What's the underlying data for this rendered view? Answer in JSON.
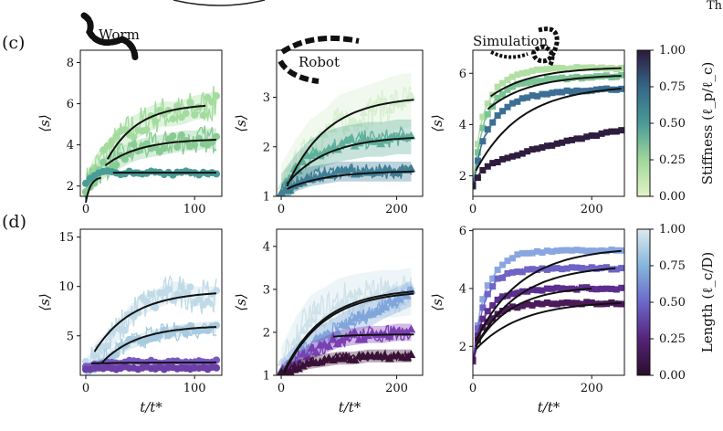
{
  "page_header": {
    "corner_text": "Th"
  },
  "colorbars": {
    "stiffness": {
      "label": "Stiffness (ℓ_p/ℓ_c)",
      "ticks": [
        "1.00",
        "0.75",
        "0.50",
        "0.25",
        "0.00"
      ],
      "colors": [
        "#2c1a3b",
        "#356689",
        "#4a9a97",
        "#9fd79c",
        "#e3f3c6"
      ]
    },
    "length": {
      "label": "Length (ℓ_c/D)",
      "ticks": [
        "1.00",
        "0.75",
        "0.50",
        "0.25",
        "0.00"
      ],
      "colors": [
        "#dde9ee",
        "#85b6dc",
        "#6c67cb",
        "#56237a",
        "#2b0d2b"
      ]
    }
  },
  "chart_data": [
    {
      "id": "c-worm",
      "type": "line",
      "panel_label": "(c)",
      "annotation": "Worm",
      "xlabel": "",
      "ylabel": "⟨s⟩",
      "xlim": [
        -5,
        125
      ],
      "ylim": [
        1.5,
        8.6
      ],
      "xticks": [
        0,
        100
      ],
      "xtick_labels": [
        "0",
        "100"
      ],
      "yticks": [
        2,
        4,
        6,
        8
      ],
      "ytick_labels": [
        "2",
        "4",
        "6",
        "8"
      ],
      "series": [
        {
          "name": "stiffness 0.10",
          "color": "#a4dc9f",
          "noise": 0.9,
          "band": 0.6,
          "marker": "circle",
          "x": [
            0,
            10,
            20,
            30,
            40,
            50,
            60,
            70,
            80,
            90,
            100,
            110,
            120
          ],
          "y": [
            2.0,
            3.0,
            3.6,
            4.2,
            4.7,
            5.0,
            5.3,
            5.5,
            5.5,
            5.6,
            5.8,
            5.9,
            6.0
          ],
          "fit": {
            "x0": 20,
            "x1": 110,
            "y_start": 3.3,
            "y_end": 5.9
          }
        },
        {
          "name": "stiffness 0.20",
          "color": "#88cc94",
          "noise": 0.7,
          "band": 0.5,
          "marker": "circle",
          "x": [
            0,
            10,
            20,
            30,
            40,
            50,
            60,
            70,
            80,
            90,
            100,
            110,
            120
          ],
          "y": [
            2.0,
            2.6,
            3.0,
            3.3,
            3.6,
            3.8,
            3.9,
            4.0,
            4.1,
            4.2,
            4.2,
            4.3,
            4.3
          ],
          "fit": {
            "x0": 18,
            "x1": 120,
            "y_start": 3.0,
            "y_end": 4.25
          }
        },
        {
          "name": "stiffness 0.55",
          "color": "#4a9c97",
          "noise": 0.15,
          "band": 0.1,
          "marker": "circle",
          "x": [
            0,
            10,
            20,
            30,
            40,
            50,
            60,
            70,
            80,
            90,
            100,
            110,
            120
          ],
          "y": [
            2.1,
            2.6,
            2.7,
            2.6,
            2.7,
            2.6,
            2.7,
            2.6,
            2.6,
            2.7,
            2.6,
            2.6,
            2.6
          ],
          "fit": {
            "x0": 25,
            "x1": 120,
            "y_start": 2.65,
            "y_end": 2.65
          }
        },
        {
          "name": "initial fit",
          "color": "#111111",
          "noise": 0,
          "band": 0,
          "marker": "none",
          "x": [
            0,
            10,
            20
          ],
          "y": [
            1.2,
            2.0,
            2.6
          ],
          "fit": {
            "x0": 0,
            "x1": 14,
            "y_start": 1.2,
            "y_end": 2.4
          }
        }
      ]
    },
    {
      "id": "c-robot",
      "type": "line",
      "panel_label": "",
      "annotation": "Robot",
      "xlabel": "",
      "ylabel": "⟨s⟩",
      "xlim": [
        -8,
        245
      ],
      "ylim": [
        1.0,
        3.95
      ],
      "xticks": [
        0,
        200
      ],
      "xtick_labels": [
        "0",
        "200"
      ],
      "yticks": [
        1,
        2,
        3
      ],
      "ytick_labels": [
        "1",
        "2",
        "3"
      ],
      "series": [
        {
          "name": "stiffness 0.05",
          "color": "#d8efd2",
          "noise": 0.35,
          "band": 0.55,
          "marker": "triangle",
          "x": [
            0,
            25,
            50,
            75,
            100,
            125,
            150,
            175,
            200,
            225
          ],
          "y": [
            1.1,
            1.6,
            2.0,
            2.2,
            2.5,
            2.6,
            2.7,
            2.8,
            2.9,
            2.95
          ],
          "fit": {
            "x0": 10,
            "x1": 230,
            "y_start": 1.2,
            "y_end": 2.95
          }
        },
        {
          "name": "stiffness 0.35",
          "color": "#5fb09b",
          "noise": 0.2,
          "band": 0.35,
          "marker": "triangle",
          "x": [
            0,
            25,
            50,
            75,
            100,
            125,
            150,
            175,
            200,
            225
          ],
          "y": [
            1.1,
            1.5,
            1.8,
            1.95,
            2.05,
            2.1,
            2.15,
            2.15,
            2.2,
            2.2
          ],
          "fit": {
            "x0": 10,
            "x1": 230,
            "y_start": 1.25,
            "y_end": 2.18
          }
        },
        {
          "name": "stiffness 0.70",
          "color": "#3f7f96",
          "noise": 0.15,
          "band": 0.2,
          "marker": "triangle",
          "x": [
            0,
            25,
            50,
            75,
            100,
            125,
            150,
            175,
            200,
            225
          ],
          "y": [
            1.05,
            1.3,
            1.4,
            1.45,
            1.5,
            1.5,
            1.5,
            1.5,
            1.5,
            1.5
          ],
          "fit": {
            "x0": 10,
            "x1": 230,
            "y_start": 1.15,
            "y_end": 1.5
          }
        }
      ]
    },
    {
      "id": "c-sim",
      "type": "line",
      "panel_label": "",
      "annotation": "Simulation",
      "xlabel": "",
      "ylabel": "⟨s⟩",
      "xlim": [
        0,
        255
      ],
      "ylim": [
        1.2,
        6.9
      ],
      "xticks": [
        0,
        200
      ],
      "xtick_labels": [
        "0",
        "200"
      ],
      "yticks": [
        2,
        4,
        6
      ],
      "ytick_labels": [
        "2",
        "4",
        "6"
      ],
      "series": [
        {
          "name": "stiffness 0.05",
          "color": "#b2e0a4",
          "noise": 0.08,
          "band": 0.1,
          "marker": "square",
          "x": [
            0,
            10,
            20,
            40,
            60,
            80,
            100,
            150,
            200,
            250
          ],
          "y": [
            1.6,
            3.6,
            4.6,
            5.4,
            5.8,
            6.0,
            6.1,
            6.2,
            6.2,
            6.2
          ],
          "fit": {
            "x0": 30,
            "x1": 250,
            "y_start": 5.1,
            "y_end": 6.2
          }
        },
        {
          "name": "stiffness 0.30",
          "color": "#7ac495",
          "noise": 0.08,
          "band": 0.1,
          "marker": "square",
          "x": [
            0,
            10,
            20,
            40,
            60,
            80,
            100,
            150,
            200,
            250
          ],
          "y": [
            1.6,
            3.2,
            4.2,
            5.0,
            5.4,
            5.6,
            5.7,
            5.8,
            5.85,
            5.9
          ],
          "fit": {
            "x0": 25,
            "x1": 250,
            "y_start": 4.6,
            "y_end": 5.9
          }
        },
        {
          "name": "stiffness 0.70",
          "color": "#3d6f95",
          "noise": 0.08,
          "band": 0.1,
          "marker": "square",
          "x": [
            0,
            10,
            20,
            40,
            60,
            80,
            100,
            150,
            200,
            250
          ],
          "y": [
            1.6,
            2.8,
            3.6,
            4.3,
            4.7,
            5.0,
            5.1,
            5.3,
            5.35,
            5.4
          ],
          "fit": {
            "x0": 5,
            "x1": 250,
            "y_start": 2.2,
            "y_end": 5.4
          }
        },
        {
          "name": "stiffness 0.95",
          "color": "#2e1d3e",
          "noise": 0.06,
          "band": 0.06,
          "marker": "square",
          "x": [
            0,
            10,
            20,
            40,
            60,
            80,
            100,
            150,
            200,
            250
          ],
          "y": [
            1.6,
            2.0,
            2.3,
            2.55,
            2.7,
            2.85,
            3.0,
            3.3,
            3.55,
            3.8
          ],
          "fit": null
        }
      ]
    },
    {
      "id": "d-worm",
      "type": "line",
      "panel_label": "(d)",
      "annotation": "",
      "xlabel": "t/t*",
      "ylabel": "⟨s⟩",
      "xlim": [
        -5,
        125
      ],
      "ylim": [
        1.0,
        15.8
      ],
      "xticks": [
        0,
        100
      ],
      "xtick_labels": [
        "0",
        "100"
      ],
      "yticks": [
        5,
        10,
        15
      ],
      "ytick_labels": [
        "5",
        "10",
        "15"
      ],
      "series": [
        {
          "name": "length 0.95",
          "color": "#c0dbe7",
          "noise": 1.8,
          "band": 1.0,
          "marker": "circle",
          "x": [
            0,
            10,
            20,
            30,
            40,
            50,
            60,
            70,
            80,
            90,
            100,
            110,
            120
          ],
          "y": [
            1.5,
            3.5,
            4.5,
            5.5,
            7.0,
            8.0,
            8.5,
            9.0,
            9.5,
            9.5,
            9.0,
            9.0,
            9.0
          ],
          "fit": {
            "x0": 8,
            "x1": 120,
            "y_start": 3.4,
            "y_end": 9.3
          }
        },
        {
          "name": "length 0.85",
          "color": "#a7cbe0",
          "noise": 1.0,
          "band": 0.6,
          "marker": "circle",
          "x": [
            0,
            10,
            20,
            30,
            40,
            50,
            60,
            70,
            80,
            90,
            100,
            110,
            120
          ],
          "y": [
            1.5,
            2.0,
            2.8,
            3.6,
            4.2,
            4.6,
            5.0,
            5.2,
            5.4,
            5.6,
            5.7,
            5.8,
            5.9
          ],
          "fit": {
            "x0": 15,
            "x1": 120,
            "y_start": 2.3,
            "y_end": 5.9
          }
        },
        {
          "name": "length 0.55",
          "color": "#7a58c2",
          "noise": 0.3,
          "band": 0.25,
          "marker": "circle",
          "x": [
            0,
            10,
            20,
            30,
            40,
            50,
            60,
            70,
            80,
            90,
            100,
            110,
            120
          ],
          "y": [
            1.9,
            2.1,
            2.3,
            2.3,
            2.4,
            2.3,
            2.4,
            2.3,
            2.4,
            2.3,
            2.4,
            2.3,
            2.4
          ],
          "fit": {
            "x0": 5,
            "x1": 120,
            "y_start": 2.2,
            "y_end": 2.3
          }
        },
        {
          "name": "length 0.45",
          "color": "#6b3fa6",
          "noise": 0.25,
          "band": 0.2,
          "marker": "circle",
          "x": [
            0,
            10,
            20,
            30,
            40,
            50,
            60,
            70,
            80,
            90,
            100,
            110,
            120
          ],
          "y": [
            1.6,
            1.7,
            1.7,
            1.7,
            1.8,
            1.7,
            1.8,
            1.7,
            1.8,
            1.7,
            1.7,
            1.7,
            1.7
          ],
          "fit": null
        }
      ]
    },
    {
      "id": "d-robot",
      "type": "line",
      "panel_label": "",
      "annotation": "",
      "xlabel": "t/t*",
      "ylabel": "⟨s⟩",
      "xlim": [
        -8,
        245
      ],
      "ylim": [
        1.0,
        4.4
      ],
      "xticks": [
        0,
        200
      ],
      "xtick_labels": [
        "0",
        "200"
      ],
      "yticks": [
        1,
        2,
        3,
        4
      ],
      "ytick_labels": [
        "1",
        "2",
        "3",
        "4"
      ],
      "series": [
        {
          "name": "length 0.95",
          "color": "#cfe2ea",
          "noise": 0.45,
          "band": 0.55,
          "marker": "triangle",
          "x": [
            0,
            25,
            50,
            75,
            100,
            125,
            150,
            175,
            200,
            225
          ],
          "y": [
            1.1,
            1.8,
            2.3,
            2.5,
            2.7,
            2.8,
            2.85,
            2.9,
            2.9,
            2.95
          ],
          "fit": {
            "x0": 5,
            "x1": 230,
            "y_start": 1.1,
            "y_end": 2.95
          }
        },
        {
          "name": "length 0.75",
          "color": "#7fa6db",
          "noise": 0.2,
          "band": 0.3,
          "marker": "triangle",
          "x": [
            0,
            25,
            50,
            75,
            100,
            125,
            150,
            175,
            200,
            225
          ],
          "y": [
            1.05,
            1.4,
            1.7,
            1.9,
            2.1,
            2.3,
            2.4,
            2.6,
            2.75,
            2.9
          ],
          "fit": {
            "x0": 5,
            "x1": 230,
            "y_start": 1.05,
            "y_end": 2.9
          }
        },
        {
          "name": "length 0.50",
          "color": "#7b3fb3",
          "noise": 0.2,
          "band": 0.2,
          "marker": "triangle",
          "x": [
            0,
            25,
            50,
            75,
            100,
            125,
            150,
            175,
            200,
            225
          ],
          "y": [
            1.05,
            1.3,
            1.55,
            1.7,
            1.85,
            1.9,
            1.95,
            1.95,
            2.0,
            2.0
          ],
          "fit": {
            "x0": 90,
            "x1": 230,
            "y_start": 1.9,
            "y_end": 1.95
          }
        },
        {
          "name": "length 0.15",
          "color": "#3a1136",
          "noise": 0.12,
          "band": 0.15,
          "marker": "triangle",
          "x": [
            0,
            25,
            50,
            75,
            100,
            125,
            150,
            175,
            200,
            225
          ],
          "y": [
            1.05,
            1.2,
            1.3,
            1.35,
            1.4,
            1.4,
            1.45,
            1.45,
            1.45,
            1.45
          ],
          "fit": null
        }
      ]
    },
    {
      "id": "d-sim",
      "type": "line",
      "panel_label": "",
      "annotation": "",
      "xlabel": "t/t*",
      "ylabel": "⟨s⟩",
      "xlim": [
        0,
        255
      ],
      "ylim": [
        1.0,
        6.05
      ],
      "xticks": [
        0,
        200
      ],
      "xtick_labels": [
        "0",
        "200"
      ],
      "yticks": [
        2,
        4,
        6
      ],
      "ytick_labels": [
        "2",
        "4",
        "6"
      ],
      "series": [
        {
          "name": "length 0.85",
          "color": "#8aa6e2",
          "noise": 0.08,
          "band": 0.08,
          "marker": "square",
          "x": [
            0,
            10,
            20,
            40,
            60,
            80,
            100,
            150,
            200,
            250
          ],
          "y": [
            1.5,
            3.0,
            3.9,
            4.6,
            5.0,
            5.2,
            5.25,
            5.3,
            5.3,
            5.3
          ],
          "fit": {
            "x0": 5,
            "x1": 250,
            "y_start": 2.2,
            "y_end": 5.3
          }
        },
        {
          "name": "length 0.65",
          "color": "#6f63c6",
          "noise": 0.08,
          "band": 0.08,
          "marker": "square",
          "x": [
            0,
            10,
            20,
            40,
            60,
            80,
            100,
            150,
            200,
            250
          ],
          "y": [
            1.5,
            2.8,
            3.6,
            4.3,
            4.5,
            4.6,
            4.65,
            4.7,
            4.7,
            4.7
          ],
          "fit": {
            "x0": 5,
            "x1": 240,
            "y_start": 2.0,
            "y_end": 4.7
          }
        },
        {
          "name": "length 0.45",
          "color": "#5d2d8d",
          "noise": 0.08,
          "band": 0.08,
          "marker": "square",
          "x": [
            0,
            10,
            20,
            40,
            60,
            80,
            100,
            150,
            200,
            250
          ],
          "y": [
            1.5,
            2.6,
            3.1,
            3.6,
            3.8,
            3.9,
            3.95,
            4.0,
            4.0,
            4.0
          ],
          "fit": {
            "x0": 5,
            "x1": 200,
            "y_start": 2.0,
            "y_end": 4.0
          }
        },
        {
          "name": "length 0.25",
          "color": "#4b1a5a",
          "noise": 0.08,
          "band": 0.08,
          "marker": "square",
          "x": [
            0,
            10,
            20,
            40,
            60,
            80,
            100,
            150,
            200,
            250
          ],
          "y": [
            1.5,
            2.3,
            2.8,
            3.1,
            3.3,
            3.4,
            3.45,
            3.5,
            3.5,
            3.5
          ],
          "fit": {
            "x0": 5,
            "x1": 250,
            "y_start": 1.9,
            "y_end": 3.5
          }
        }
      ]
    }
  ]
}
